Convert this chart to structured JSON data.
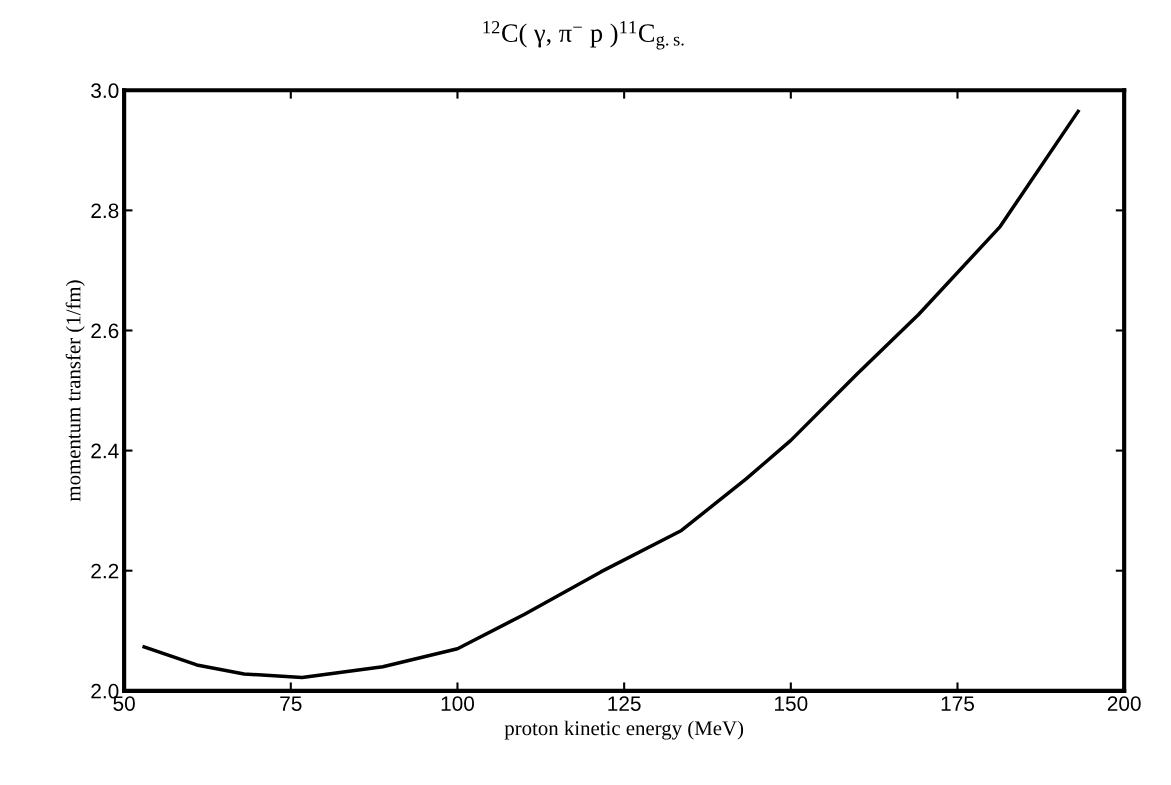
{
  "chart_data": {
    "type": "line",
    "title": "$^{12}$C( γ, π$^{−}$ p )$^{11}$C$_{g.s.}$",
    "xlabel": "proton kinetic energy (MeV)",
    "ylabel": "momentum transfer (1/fm)",
    "x": [
      53.0,
      60.9,
      68.0,
      76.7,
      88.8,
      100,
      110,
      121.5,
      133.6,
      143.3,
      150,
      159.9,
      169.2,
      181.4,
      193.1
    ],
    "series": [
      {
        "color": "#000000",
        "values": [
          2.073,
          2.043,
          2.028,
          2.022,
          2.04,
          2.07,
          2.127,
          2.198,
          2.267,
          2.353,
          2.417,
          2.527,
          2.627,
          2.773,
          2.965
        ]
      }
    ],
    "xlim": [
      50,
      200
    ],
    "xticks": [
      50,
      75,
      100,
      125,
      150,
      175,
      200
    ],
    "ylim": [
      2.0,
      3.0
    ],
    "yticks": [
      {
        "value": 2.0,
        "label": "2.0"
      },
      2.2,
      2.4,
      2.6,
      2.8,
      {
        "value": 3.0,
        "label": "3.0"
      }
    ],
    "grid": false,
    "legend": false,
    "marker": "none",
    "line_style": "solid"
  }
}
